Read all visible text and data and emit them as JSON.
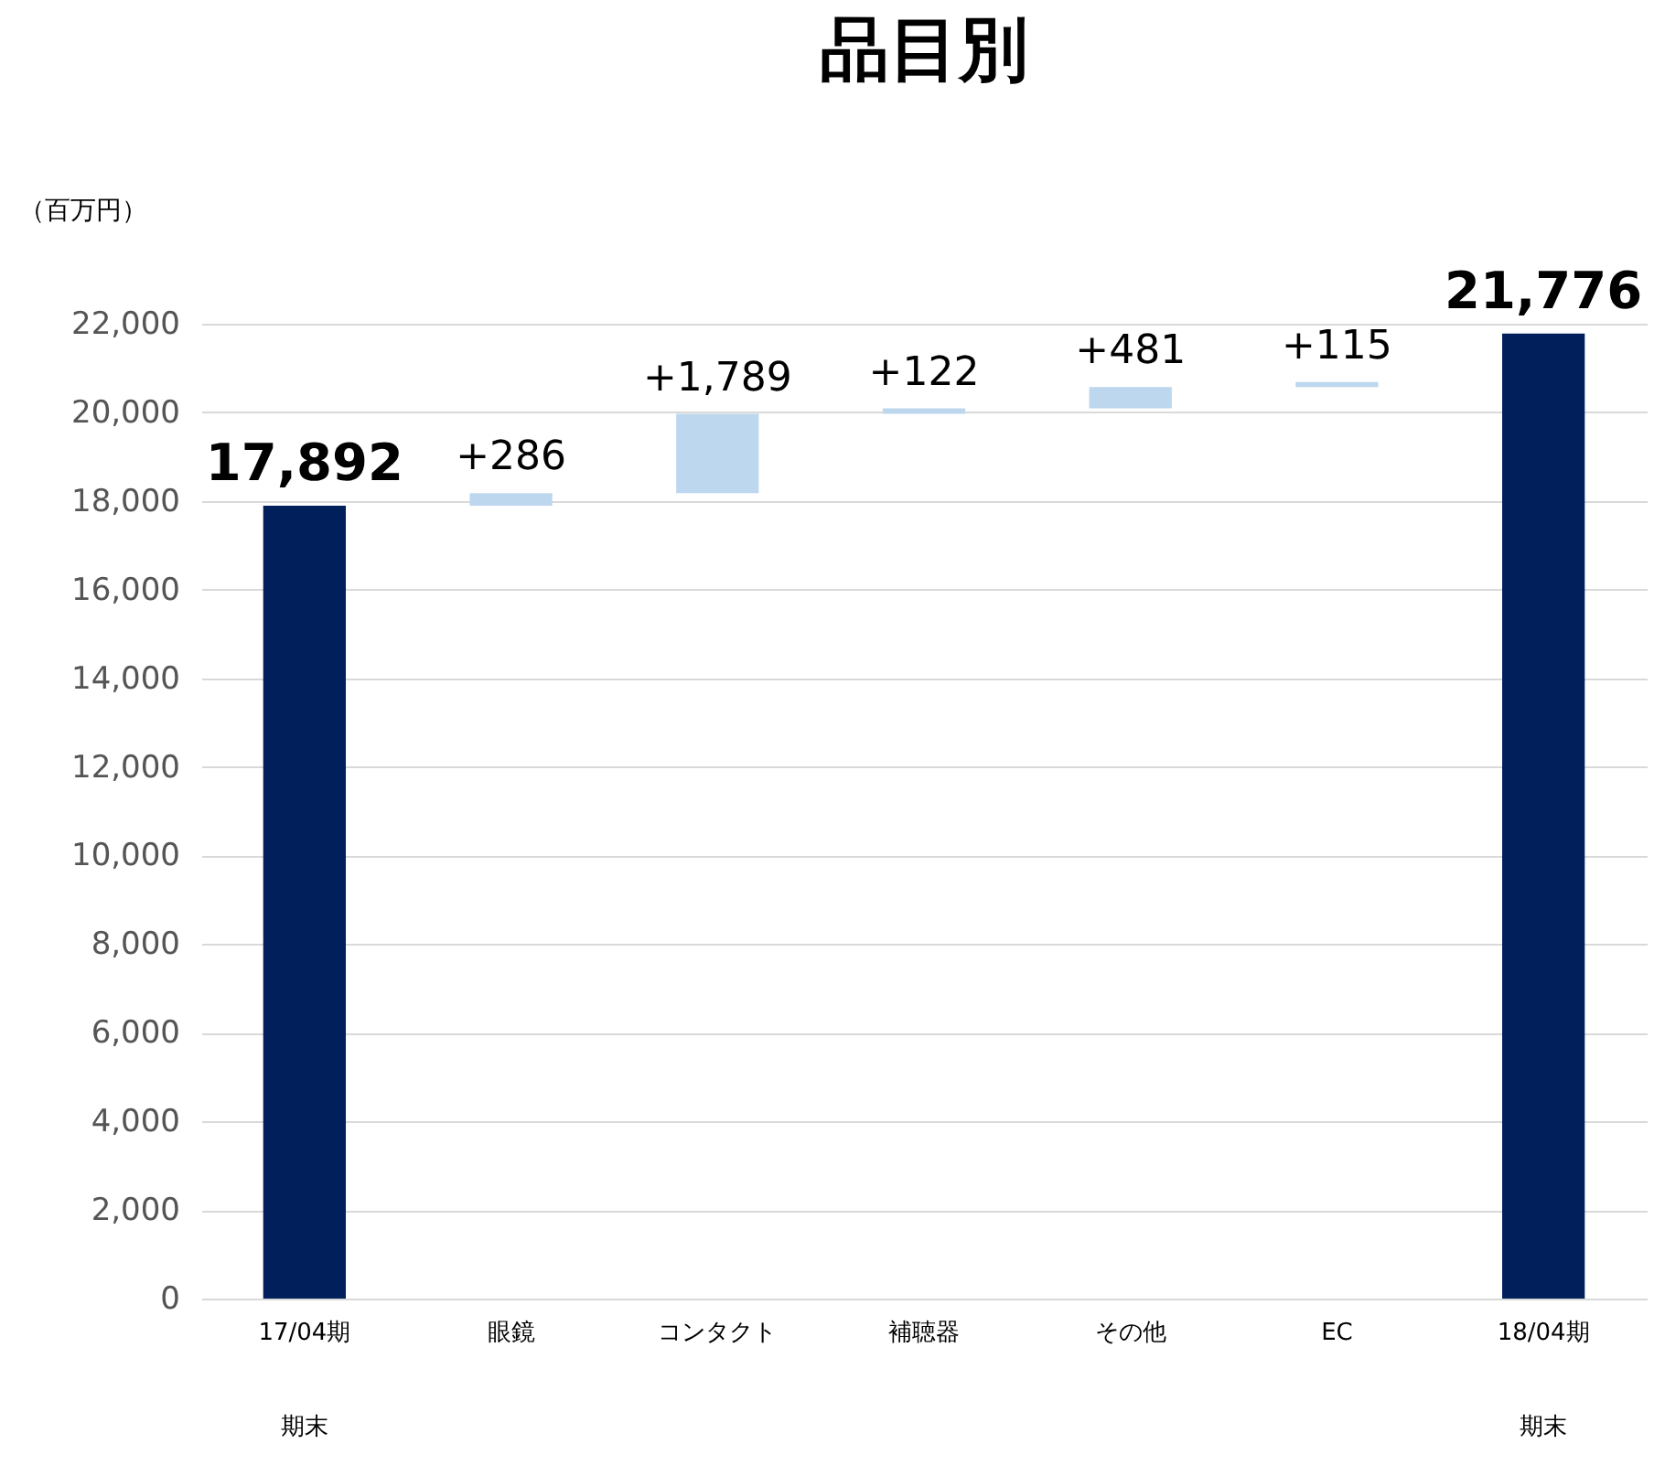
{
  "chart_data": {
    "type": "bar",
    "title": "品目別",
    "ylabel": "（百万円）",
    "categories": [
      "17/04期",
      "眼鏡",
      "コンタクト",
      "補聴器",
      "その他",
      "EC",
      "18/04期"
    ],
    "values": [
      17892,
      286,
      1789,
      122,
      481,
      115,
      21776
    ],
    "base": [
      0,
      17892,
      18178,
      19967,
      20089,
      20570,
      0
    ],
    "colors": [
      "#001f5b",
      "#bdd7ee",
      "#bdd7ee",
      "#bdd7ee",
      "#bdd7ee",
      "#bdd7ee",
      "#001f5b"
    ],
    "value_labels": [
      "17,892",
      "+286",
      "+1,789",
      "+122",
      "+481",
      "+115",
      "21,776"
    ],
    "annotations": [
      "期末",
      "期末"
    ],
    "ylim": [
      0,
      22000
    ],
    "yticks": [
      {
        "value": 0,
        "label": "0"
      },
      {
        "value": 2000,
        "label": "2,000"
      },
      {
        "value": 4000,
        "label": "4,000"
      },
      {
        "value": 6000,
        "label": "6,000"
      },
      {
        "value": 8000,
        "label": "8,000"
      },
      {
        "value": 10000,
        "label": "10,000"
      },
      {
        "value": 12000,
        "label": "12,000"
      },
      {
        "value": 14000,
        "label": "14,000"
      },
      {
        "value": 16000,
        "label": "16,000"
      },
      {
        "value": 18000,
        "label": "18,000"
      },
      {
        "value": 20000,
        "label": "20,000"
      },
      {
        "value": 22000,
        "label": "22,000"
      }
    ],
    "grid": "y"
  }
}
